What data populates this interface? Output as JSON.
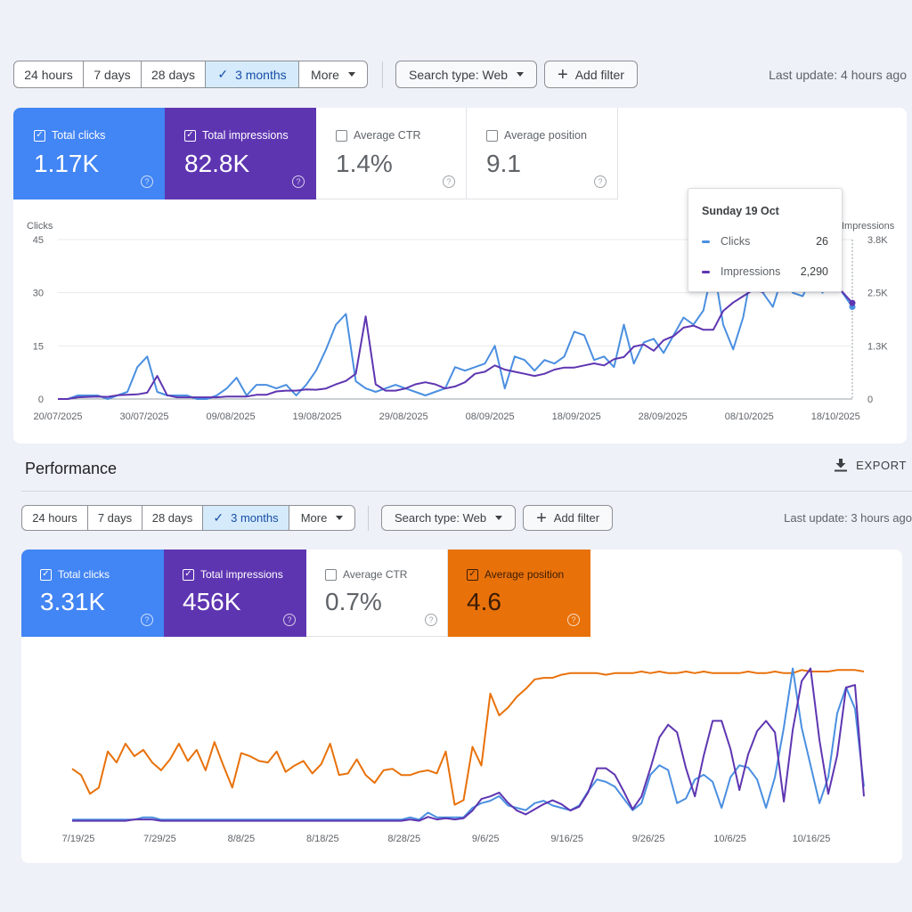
{
  "top": {
    "date_ranges": [
      {
        "label": "24 hours",
        "active": false
      },
      {
        "label": "7 days",
        "active": false
      },
      {
        "label": "28 days",
        "active": false
      },
      {
        "label": "3 months",
        "active": true
      },
      {
        "label": "More",
        "active": false
      }
    ],
    "search_type": "Search type: Web",
    "add_filter": "Add filter",
    "last_update": "Last update: 4 hours ago",
    "metrics": [
      {
        "label": "Total clicks",
        "value": "1.17K",
        "checked": true,
        "color": "#4285f4"
      },
      {
        "label": "Total impressions",
        "value": "82.8K",
        "checked": true,
        "color": "#5e35b1"
      },
      {
        "label": "Average CTR",
        "value": "1.4%",
        "checked": false,
        "color": "#ffffff"
      },
      {
        "label": "Average position",
        "value": "9.1",
        "checked": false,
        "color": "#ffffff"
      }
    ],
    "tooltip": {
      "date": "Sunday 19 Oct",
      "clicks_label": "Clicks",
      "clicks_value": "26",
      "impressions_label": "Impressions",
      "impressions_value": "2,290"
    }
  },
  "performance": {
    "title": "Performance",
    "export_label": "EXPORT",
    "date_ranges": [
      {
        "label": "24 hours",
        "active": false
      },
      {
        "label": "7 days",
        "active": false
      },
      {
        "label": "28 days",
        "active": false
      },
      {
        "label": "3 months",
        "active": true
      },
      {
        "label": "More",
        "active": false
      }
    ],
    "search_type": "Search type: Web",
    "add_filter": "Add filter",
    "last_update": "Last update: 3 hours ago",
    "metrics": [
      {
        "label": "Total clicks",
        "value": "3.31K",
        "checked": true,
        "color": "#4285f4"
      },
      {
        "label": "Total impressions",
        "value": "456K",
        "checked": true,
        "color": "#5e35b1"
      },
      {
        "label": "Average CTR",
        "value": "0.7%",
        "checked": false,
        "color": "#ffffff"
      },
      {
        "label": "Average position",
        "value": "4.6",
        "checked": true,
        "color": "#e8710a"
      }
    ]
  },
  "chart_data": [
    {
      "type": "line",
      "left_axis_label": "Clicks",
      "right_axis_label": "Impressions",
      "left_ticks": [
        "0",
        "15",
        "30",
        "45"
      ],
      "right_ticks": [
        "0",
        "1.3K",
        "2.5K",
        "3.8K"
      ],
      "ylim_left": [
        0,
        45
      ],
      "ylim_right": [
        0,
        3800
      ],
      "x_labels": [
        "20/07/2025",
        "30/07/2025",
        "09/08/2025",
        "19/08/2025",
        "29/08/2025",
        "08/09/2025",
        "18/09/2025",
        "28/09/2025",
        "08/10/2025",
        "18/10/2025"
      ],
      "series": [
        {
          "name": "Clicks",
          "color": "#4a8fe0",
          "values": [
            0,
            0,
            1,
            1,
            1,
            0,
            1,
            2,
            9,
            12,
            2,
            1,
            1,
            1,
            0,
            0,
            1,
            3,
            6,
            1,
            4,
            4,
            3,
            4,
            1,
            4,
            8,
            14,
            21,
            24,
            5,
            3,
            2,
            3,
            4,
            3,
            2,
            1,
            2,
            3,
            9,
            8,
            9,
            10,
            15,
            3,
            12,
            11,
            8,
            11,
            10,
            12,
            19,
            18,
            11,
            12,
            9,
            21,
            10,
            16,
            17,
            13,
            18,
            23,
            21,
            25,
            38,
            21,
            14,
            23,
            38,
            30,
            26,
            35,
            30,
            29,
            35,
            30,
            36,
            30,
            26
          ]
        },
        {
          "name": "Impressions",
          "color": "#5e35b1",
          "values": [
            0,
            0,
            40,
            50,
            60,
            50,
            90,
            100,
            110,
            150,
            550,
            90,
            40,
            40,
            40,
            40,
            40,
            60,
            60,
            60,
            100,
            100,
            180,
            200,
            200,
            230,
            220,
            250,
            350,
            430,
            600,
            1970,
            350,
            200,
            200,
            250,
            350,
            400,
            350,
            250,
            300,
            400,
            600,
            650,
            800,
            700,
            650,
            600,
            550,
            600,
            700,
            750,
            750,
            800,
            850,
            800,
            950,
            1000,
            1250,
            1300,
            1150,
            1400,
            1500,
            1700,
            1750,
            1650,
            1650,
            2100,
            2300,
            2450,
            2600,
            2550,
            2650,
            2900,
            2950,
            3200,
            3150,
            3050,
            2900,
            2550,
            2290
          ]
        }
      ]
    },
    {
      "type": "line",
      "x_labels": [
        "7/19/25",
        "7/29/25",
        "8/8/25",
        "8/18/25",
        "8/28/25",
        "9/6/25",
        "9/16/25",
        "9/26/25",
        "10/6/25",
        "10/16/25"
      ],
      "series": [
        {
          "name": "Clicks",
          "color": "#4a8fe0",
          "values": [
            1,
            1,
            1,
            1,
            1,
            1,
            1,
            1,
            2,
            2,
            1,
            1,
            1,
            1,
            1,
            1,
            1,
            1,
            1,
            1,
            1,
            1,
            1,
            1,
            1,
            1,
            1,
            1,
            1,
            1,
            1,
            1,
            1,
            1,
            1,
            1,
            1,
            1,
            2,
            1,
            4,
            2,
            2,
            2,
            2,
            6,
            8,
            9,
            11,
            7,
            6,
            5,
            8,
            9,
            7,
            6,
            5,
            7,
            13,
            18,
            17,
            15,
            10,
            5,
            8,
            20,
            24,
            22,
            8,
            10,
            18,
            20,
            17,
            6,
            19,
            24,
            23,
            18,
            6,
            19,
            40,
            65,
            40,
            24,
            8,
            19,
            46,
            57,
            48,
            15
          ]
        },
        {
          "name": "Impressions",
          "color": "#5e35b1",
          "values": [
            1,
            1,
            1,
            1,
            1,
            1,
            1,
            2,
            2,
            2,
            1,
            1,
            1,
            1,
            1,
            1,
            1,
            1,
            1,
            1,
            1,
            1,
            1,
            1,
            1,
            1,
            1,
            1,
            1,
            1,
            1,
            1,
            1,
            1,
            1,
            1,
            1,
            1,
            2,
            1,
            4,
            2,
            3,
            2,
            3,
            9,
            18,
            20,
            23,
            15,
            9,
            6,
            10,
            14,
            17,
            14,
            9,
            12,
            23,
            42,
            42,
            37,
            24,
            10,
            20,
            42,
            66,
            76,
            70,
            42,
            20,
            52,
            79,
            79,
            57,
            25,
            53,
            71,
            79,
            70,
            16,
            72,
            110,
            120,
            64,
            22,
            52,
            105,
            107,
            20
          ]
        },
        {
          "name": "Average position",
          "color": "#e8710a",
          "values": [
            34,
            30,
            18,
            22,
            45,
            38,
            50,
            42,
            46,
            38,
            33,
            40,
            50,
            39,
            46,
            33,
            51,
            36,
            22,
            44,
            42,
            39,
            38,
            45,
            32,
            36,
            39,
            31,
            37,
            50,
            30,
            31,
            40,
            30,
            25,
            33,
            34,
            30,
            30,
            32,
            33,
            31,
            45,
            11,
            14,
            48,
            36,
            82,
            68,
            73,
            80,
            85,
            91,
            92,
            92,
            94,
            95,
            95,
            95,
            95,
            94,
            95,
            95,
            95,
            96,
            95,
            96,
            95,
            95,
            96,
            95,
            96,
            95,
            95,
            95,
            95,
            96,
            95,
            95,
            96,
            95,
            95,
            97,
            96,
            96,
            96,
            97,
            97,
            97,
            96
          ]
        }
      ]
    }
  ]
}
